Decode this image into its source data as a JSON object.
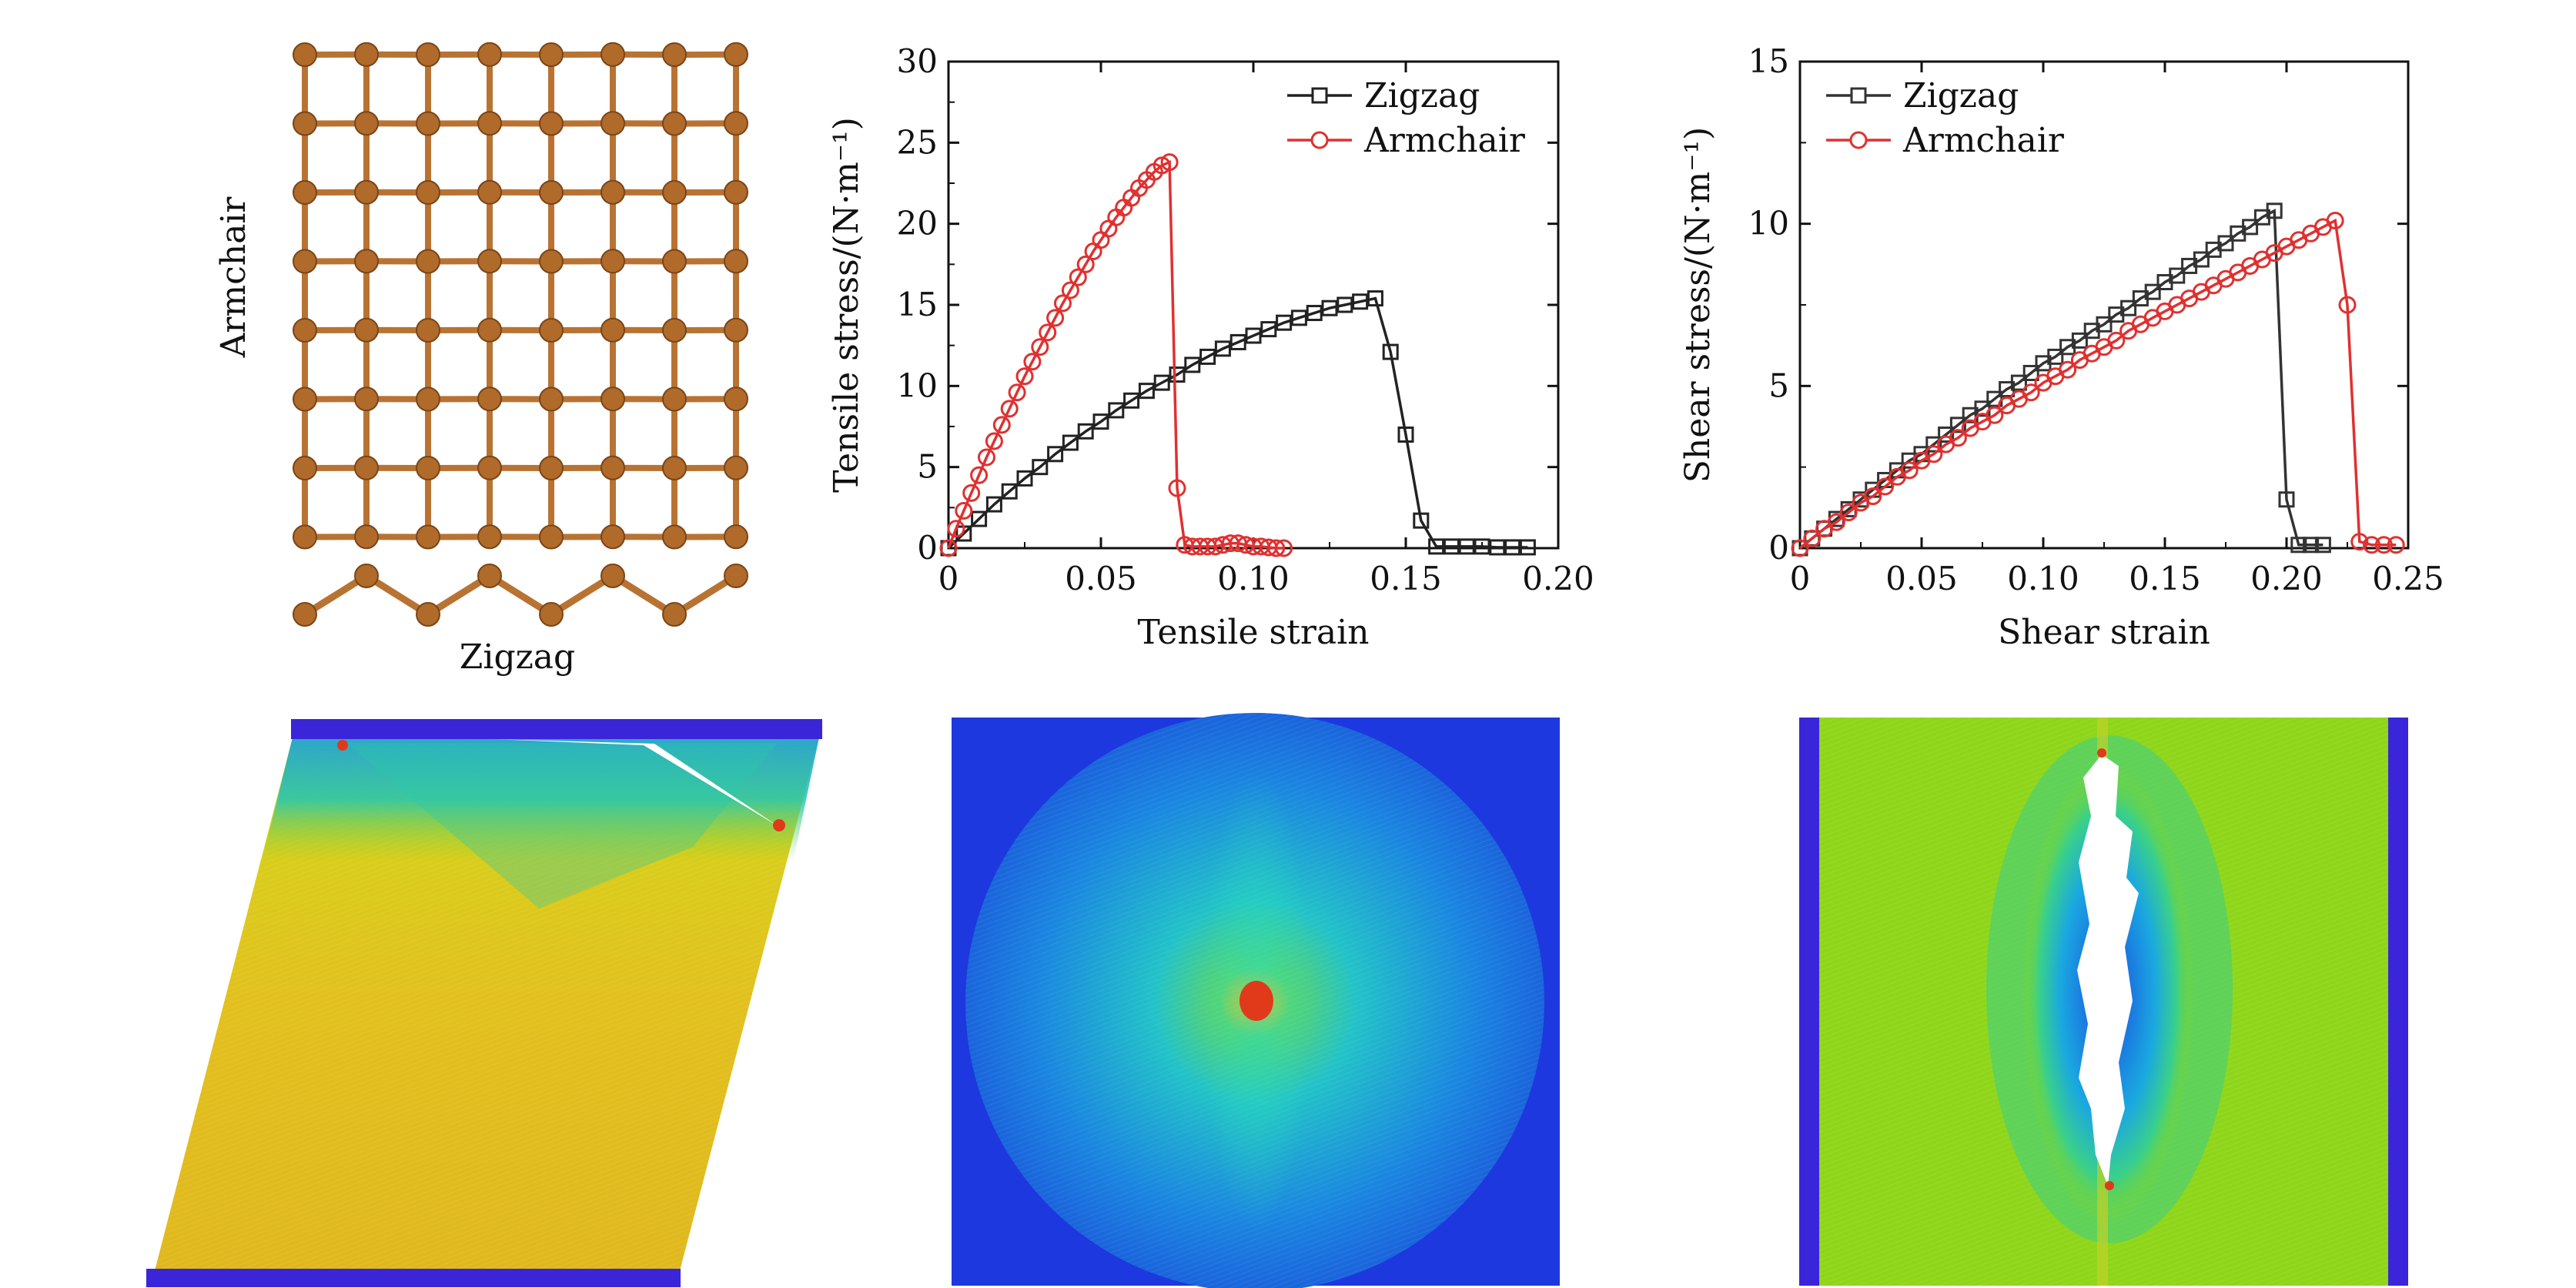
{
  "lattice": {
    "armchair_label": "Armchair",
    "zigzag_label": "Zigzag",
    "atom_color": "#b06a2a",
    "bond_color": "#b87333"
  },
  "chart_data": [
    {
      "type": "line",
      "title": "",
      "xlabel": "Tensile strain",
      "ylabel": "Tensile stress/(N·m⁻¹)",
      "xlim": [
        0,
        0.2
      ],
      "ylim": [
        0,
        30
      ],
      "xticks": [
        "0",
        "0.05",
        "0.10",
        "0.15",
        "0.20"
      ],
      "yticks": [
        "0",
        "5",
        "10",
        "15",
        "20",
        "25",
        "30"
      ],
      "legend_position": "top-right",
      "series": [
        {
          "name": "Zigzag",
          "color": "#222222",
          "marker": "square",
          "x": [
            0,
            0.005,
            0.01,
            0.015,
            0.02,
            0.025,
            0.03,
            0.035,
            0.04,
            0.045,
            0.05,
            0.055,
            0.06,
            0.065,
            0.07,
            0.075,
            0.08,
            0.085,
            0.09,
            0.095,
            0.1,
            0.105,
            0.11,
            0.115,
            0.12,
            0.125,
            0.13,
            0.135,
            0.14,
            0.145,
            0.15,
            0.155,
            0.16,
            0.165,
            0.17,
            0.175,
            0.18,
            0.185,
            0.19
          ],
          "values": [
            0,
            0.9,
            1.8,
            2.7,
            3.5,
            4.3,
            5.0,
            5.8,
            6.5,
            7.2,
            7.8,
            8.5,
            9.1,
            9.7,
            10.2,
            10.7,
            11.3,
            11.8,
            12.3,
            12.7,
            13.1,
            13.5,
            13.9,
            14.2,
            14.5,
            14.8,
            15.0,
            15.2,
            15.4,
            12.1,
            7.0,
            1.7,
            0.1,
            0.1,
            0.1,
            0.1,
            0.05,
            0.05,
            0.05
          ]
        },
        {
          "name": "Armchair",
          "color": "#e03030",
          "marker": "circle",
          "x": [
            0,
            0.0025,
            0.005,
            0.0075,
            0.01,
            0.0125,
            0.015,
            0.0175,
            0.02,
            0.0225,
            0.025,
            0.0275,
            0.03,
            0.0325,
            0.035,
            0.0375,
            0.04,
            0.0425,
            0.045,
            0.0475,
            0.05,
            0.0525,
            0.055,
            0.0575,
            0.06,
            0.0625,
            0.065,
            0.0675,
            0.07,
            0.0725,
            0.075,
            0.0775,
            0.08,
            0.0825,
            0.085,
            0.0875,
            0.09,
            0.0925,
            0.095,
            0.0975,
            0.1,
            0.1025,
            0.105,
            0.1075,
            0.11
          ],
          "values": [
            0,
            1.2,
            2.3,
            3.4,
            4.5,
            5.6,
            6.6,
            7.6,
            8.6,
            9.6,
            10.6,
            11.5,
            12.4,
            13.3,
            14.2,
            15.1,
            15.9,
            16.7,
            17.5,
            18.3,
            19.0,
            19.7,
            20.4,
            21.0,
            21.6,
            22.2,
            22.7,
            23.2,
            23.6,
            23.8,
            3.7,
            0.2,
            0.1,
            0.1,
            0.1,
            0.1,
            0.2,
            0.3,
            0.3,
            0.2,
            0.1,
            0.1,
            0.05,
            0.0,
            0.0
          ]
        }
      ]
    },
    {
      "type": "line",
      "title": "",
      "xlabel": "Shear strain",
      "ylabel": "Shear stress/(N·m⁻¹)",
      "xlim": [
        0,
        0.25
      ],
      "ylim": [
        0,
        15
      ],
      "xticks": [
        "0",
        "0.05",
        "0.10",
        "0.15",
        "0.20",
        "0.25"
      ],
      "yticks": [
        "0",
        "5",
        "10",
        "15"
      ],
      "legend_position": "top-left",
      "series": [
        {
          "name": "Zigzag",
          "color": "#333333",
          "marker": "square",
          "x": [
            0,
            0.005,
            0.01,
            0.015,
            0.02,
            0.025,
            0.03,
            0.035,
            0.04,
            0.045,
            0.05,
            0.055,
            0.06,
            0.065,
            0.07,
            0.075,
            0.08,
            0.085,
            0.09,
            0.095,
            0.1,
            0.105,
            0.11,
            0.115,
            0.12,
            0.125,
            0.13,
            0.135,
            0.14,
            0.145,
            0.15,
            0.155,
            0.16,
            0.165,
            0.17,
            0.175,
            0.18,
            0.185,
            0.19,
            0.195,
            0.2,
            0.205,
            0.21,
            0.215
          ],
          "values": [
            0,
            0.3,
            0.6,
            0.9,
            1.2,
            1.5,
            1.8,
            2.1,
            2.4,
            2.7,
            2.9,
            3.2,
            3.5,
            3.8,
            4.1,
            4.3,
            4.6,
            4.9,
            5.1,
            5.4,
            5.7,
            5.9,
            6.2,
            6.4,
            6.7,
            6.9,
            7.2,
            7.4,
            7.7,
            7.9,
            8.2,
            8.4,
            8.7,
            8.9,
            9.2,
            9.4,
            9.7,
            9.9,
            10.2,
            10.4,
            1.5,
            0.1,
            0.1,
            0.1
          ]
        },
        {
          "name": "Armchair",
          "color": "#e03030",
          "marker": "circle",
          "x": [
            0,
            0.005,
            0.01,
            0.015,
            0.02,
            0.025,
            0.03,
            0.035,
            0.04,
            0.045,
            0.05,
            0.055,
            0.06,
            0.065,
            0.07,
            0.075,
            0.08,
            0.085,
            0.09,
            0.095,
            0.1,
            0.105,
            0.11,
            0.115,
            0.12,
            0.125,
            0.13,
            0.135,
            0.14,
            0.145,
            0.15,
            0.155,
            0.16,
            0.165,
            0.17,
            0.175,
            0.18,
            0.185,
            0.19,
            0.195,
            0.2,
            0.205,
            0.21,
            0.215,
            0.22,
            0.225,
            0.23,
            0.235,
            0.24,
            0.245
          ],
          "values": [
            0,
            0.3,
            0.6,
            0.8,
            1.1,
            1.4,
            1.6,
            1.9,
            2.2,
            2.4,
            2.7,
            2.9,
            3.2,
            3.4,
            3.7,
            3.9,
            4.1,
            4.4,
            4.6,
            4.8,
            5.1,
            5.3,
            5.5,
            5.8,
            6.0,
            6.2,
            6.4,
            6.7,
            6.9,
            7.1,
            7.3,
            7.5,
            7.7,
            7.9,
            8.1,
            8.3,
            8.5,
            8.7,
            8.9,
            9.1,
            9.3,
            9.5,
            9.7,
            9.9,
            10.1,
            7.5,
            0.2,
            0.1,
            0.1,
            0.1
          ]
        }
      ]
    }
  ],
  "colormaps": {
    "low": "#2a2bd6",
    "mid_low": "#1aa0e8",
    "mid": "#26d0a0",
    "mid_high": "#9ad61a",
    "high": "#e8c21a",
    "peak": "#e03a1a"
  }
}
